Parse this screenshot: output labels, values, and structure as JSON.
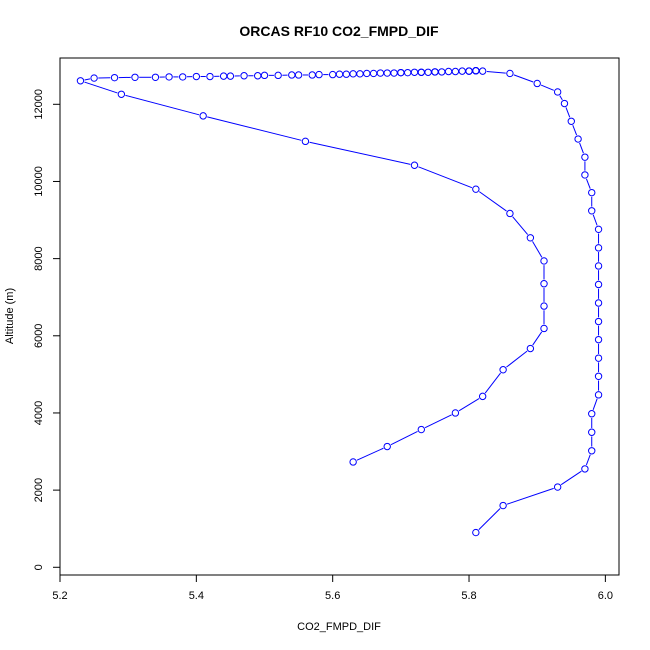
{
  "chart_data": {
    "type": "line",
    "title": "ORCAS RF10 CO2_FMPD_DIF",
    "xlabel": "CO2_FMPD_DIF",
    "ylabel": "Altitude (m)",
    "xlim": [
      5.2,
      6.02
    ],
    "ylim": [
      -200,
      13200
    ],
    "xticks": [
      "5.2",
      "5.4",
      "5.6",
      "5.8",
      "6.0"
    ],
    "yticks": [
      "0",
      "2000",
      "4000",
      "6000",
      "8000",
      "10000",
      "12000"
    ],
    "grid": false,
    "marker": "open-circle",
    "colors": {
      "series": "#0000ff",
      "axis": "#000000"
    },
    "series": [
      {
        "x": [
          5.81,
          5.85,
          5.93,
          5.97,
          5.98,
          5.98,
          5.98,
          5.99,
          5.99,
          5.99,
          5.99,
          5.99,
          5.99,
          5.99,
          5.99,
          5.99,
          5.99,
          5.98,
          5.98,
          5.97,
          5.97,
          5.96,
          5.95,
          5.94,
          5.93,
          5.9,
          5.86,
          5.82,
          5.81,
          5.81,
          5.81,
          5.8,
          5.8,
          5.79,
          5.78,
          5.77,
          5.76,
          5.75,
          5.75,
          5.74,
          5.73,
          5.73,
          5.72,
          5.71,
          5.7,
          5.7,
          5.69,
          5.68,
          5.67,
          5.66,
          5.65,
          5.64,
          5.63,
          5.62,
          5.61,
          5.6,
          5.58,
          5.57,
          5.55,
          5.54,
          5.52,
          5.5,
          5.49,
          5.47,
          5.45,
          5.44,
          5.42,
          5.4,
          5.38,
          5.36,
          5.34,
          5.31,
          5.28,
          5.25,
          5.23,
          5.29,
          5.41,
          5.56,
          5.72,
          5.81,
          5.86,
          5.89,
          5.91,
          5.91,
          5.91,
          5.91,
          5.89,
          5.85,
          5.82,
          5.78,
          5.73,
          5.68,
          5.63
        ],
        "y": [
          900,
          1600,
          2080,
          2550,
          3020,
          3500,
          3980,
          4470,
          4950,
          5420,
          5900,
          6370,
          6850,
          7330,
          7810,
          8280,
          8760,
          9240,
          9710,
          10170,
          10630,
          11100,
          11560,
          12020,
          12320,
          12540,
          12800,
          12860,
          12870,
          12870,
          12870,
          12860,
          12860,
          12860,
          12850,
          12850,
          12840,
          12840,
          12840,
          12830,
          12830,
          12830,
          12830,
          12820,
          12820,
          12820,
          12810,
          12810,
          12810,
          12800,
          12800,
          12790,
          12790,
          12780,
          12780,
          12770,
          12770,
          12760,
          12760,
          12760,
          12750,
          12750,
          12740,
          12740,
          12730,
          12730,
          12720,
          12720,
          12710,
          12710,
          12700,
          12700,
          12690,
          12680,
          12610,
          12260,
          11700,
          11040,
          10420,
          9800,
          9170,
          8540,
          7940,
          7350,
          6770,
          6190,
          5670,
          5120,
          4430,
          4000,
          3570,
          3130,
          2730
        ]
      }
    ]
  }
}
